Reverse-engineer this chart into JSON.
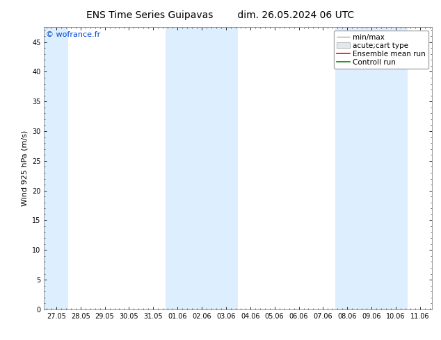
{
  "title_left": "ENS Time Series Guipavas",
  "title_right": "dim. 26.05.2024 06 UTC",
  "ylabel": "Wind 925 hPa (m/s)",
  "watermark": "© wofrance.fr",
  "ylim": [
    0,
    47.5
  ],
  "yticks": [
    0,
    5,
    10,
    15,
    20,
    25,
    30,
    35,
    40,
    45
  ],
  "x_tick_labels": [
    "27.05",
    "28.05",
    "29.05",
    "30.05",
    "31.05",
    "01.06",
    "02.06",
    "03.06",
    "04.06",
    "05.06",
    "06.06",
    "07.06",
    "08.06",
    "09.06",
    "10.06",
    "11.06"
  ],
  "band_color": "#ddeeff",
  "background_color": "#ffffff",
  "legend_items": [
    "min/max",
    "acute;cart type",
    "Ensemble mean run",
    "Controll run"
  ],
  "legend_colors": [
    "#aaaaaa",
    "#cccccc",
    "#ff0000",
    "#008800"
  ],
  "title_fontsize": 10,
  "ylabel_fontsize": 8,
  "tick_fontsize": 7,
  "watermark_fontsize": 8,
  "legend_fontsize": 7.5
}
